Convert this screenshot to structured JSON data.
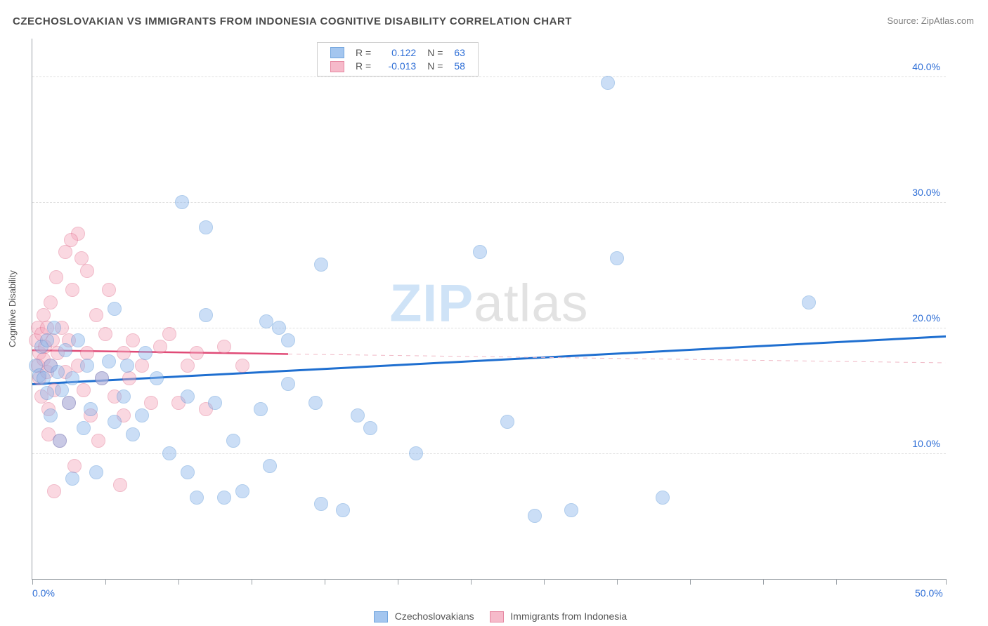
{
  "title": "CZECHOSLOVAKIAN VS IMMIGRANTS FROM INDONESIA COGNITIVE DISABILITY CORRELATION CHART",
  "source": "Source: ZipAtlas.com",
  "watermark": {
    "part1": "ZIP",
    "part2": "atlas"
  },
  "yaxis_title": "Cognitive Disability",
  "chart": {
    "type": "scatter",
    "background_color": "#ffffff",
    "grid_color": "#e0e0e0",
    "axis_color": "#9aa0a6",
    "label_color": "#2e6ed6",
    "xlim": [
      0,
      50
    ],
    "ylim": [
      0,
      43
    ],
    "x_ticks": [
      0,
      4,
      8,
      12,
      16,
      20,
      24,
      28,
      32,
      36,
      40,
      44,
      50
    ],
    "x_tick_labels": {
      "0": "0.0%",
      "50": "50.0%"
    },
    "y_gridlines": [
      10,
      20,
      30,
      40
    ],
    "y_tick_labels": {
      "10": "10.0%",
      "20": "20.0%",
      "30": "30.0%",
      "40": "40.0%"
    },
    "marker_radius": 9,
    "marker_opacity": 0.45,
    "marker_stroke_width": 1.3
  },
  "series": {
    "a": {
      "name": "Czechoslovakians",
      "fill_color": "#8eb8ec",
      "stroke_color": "#4f8fd6",
      "R": "0.122",
      "N": "63",
      "trend": {
        "solid": {
          "y_at_x0": 15.5,
          "y_at_x50": 19.3,
          "x_end": 50
        },
        "solid_color": "#1f6fd0",
        "solid_width": 3
      },
      "points": [
        [
          0.2,
          17.0
        ],
        [
          0.4,
          16.2
        ],
        [
          0.5,
          18.5
        ],
        [
          0.6,
          16.0
        ],
        [
          0.8,
          19.0
        ],
        [
          0.8,
          14.8
        ],
        [
          1.0,
          17.0
        ],
        [
          1.0,
          13.0
        ],
        [
          1.2,
          20.0
        ],
        [
          1.4,
          16.5
        ],
        [
          1.5,
          11.0
        ],
        [
          1.8,
          18.2
        ],
        [
          2.0,
          14.0
        ],
        [
          2.2,
          16.0
        ],
        [
          2.2,
          8.0
        ],
        [
          2.5,
          19.0
        ],
        [
          2.8,
          12.0
        ],
        [
          3.0,
          17.0
        ],
        [
          3.2,
          13.5
        ],
        [
          3.5,
          8.5
        ],
        [
          3.8,
          16.0
        ],
        [
          4.2,
          17.3
        ],
        [
          4.5,
          12.5
        ],
        [
          4.5,
          21.5
        ],
        [
          5.0,
          14.5
        ],
        [
          5.2,
          17.0
        ],
        [
          5.5,
          11.5
        ],
        [
          6.0,
          13.0
        ],
        [
          6.2,
          18.0
        ],
        [
          6.8,
          16.0
        ],
        [
          7.5,
          10.0
        ],
        [
          8.2,
          30.0
        ],
        [
          8.5,
          14.5
        ],
        [
          8.5,
          8.5
        ],
        [
          9.0,
          6.5
        ],
        [
          9.5,
          21.0
        ],
        [
          9.5,
          28.0
        ],
        [
          10.0,
          14.0
        ],
        [
          10.5,
          6.5
        ],
        [
          11.0,
          11.0
        ],
        [
          11.5,
          7.0
        ],
        [
          12.5,
          13.5
        ],
        [
          12.8,
          20.5
        ],
        [
          13.0,
          9.0
        ],
        [
          13.5,
          20.0
        ],
        [
          14.0,
          15.5
        ],
        [
          14.0,
          19.0
        ],
        [
          15.5,
          14.0
        ],
        [
          15.8,
          6.0
        ],
        [
          15.8,
          25.0
        ],
        [
          17.0,
          5.5
        ],
        [
          17.8,
          13.0
        ],
        [
          18.5,
          12.0
        ],
        [
          21.0,
          10.0
        ],
        [
          24.5,
          26.0
        ],
        [
          26.0,
          12.5
        ],
        [
          27.5,
          5.0
        ],
        [
          29.5,
          5.5
        ],
        [
          31.5,
          39.5
        ],
        [
          32.0,
          25.5
        ],
        [
          34.5,
          6.5
        ],
        [
          42.5,
          22.0
        ],
        [
          1.6,
          15.0
        ]
      ]
    },
    "b": {
      "name": "Immigrants from Indonesia",
      "fill_color": "#f5a9be",
      "stroke_color": "#e06a8a",
      "R": "-0.013",
      "N": "58",
      "trend": {
        "solid": {
          "y_at_x0": 18.2,
          "y_at_x_end": 17.9,
          "x_end": 14
        },
        "solid_color": "#e04b77",
        "solid_width": 2.5,
        "dashed": {
          "y_at_x_start": 17.9,
          "x_start": 14,
          "y_at_x50": 17.2
        },
        "dashed_color": "#f0b9c6",
        "dashed_width": 1
      },
      "points": [
        [
          0.2,
          19.0
        ],
        [
          0.3,
          17.0
        ],
        [
          0.3,
          20.0
        ],
        [
          0.4,
          18.0
        ],
        [
          0.4,
          16.0
        ],
        [
          0.5,
          19.5
        ],
        [
          0.5,
          14.5
        ],
        [
          0.6,
          21.0
        ],
        [
          0.6,
          17.5
        ],
        [
          0.7,
          18.5
        ],
        [
          0.8,
          16.5
        ],
        [
          0.8,
          20.0
        ],
        [
          0.9,
          13.5
        ],
        [
          1.0,
          22.0
        ],
        [
          1.0,
          17.0
        ],
        [
          1.1,
          19.0
        ],
        [
          1.2,
          15.0
        ],
        [
          1.3,
          24.0
        ],
        [
          1.4,
          18.0
        ],
        [
          1.5,
          11.0
        ],
        [
          1.6,
          20.0
        ],
        [
          1.8,
          16.5
        ],
        [
          1.8,
          26.0
        ],
        [
          2.0,
          14.0
        ],
        [
          2.0,
          19.0
        ],
        [
          2.2,
          23.0
        ],
        [
          2.3,
          9.0
        ],
        [
          2.5,
          17.0
        ],
        [
          2.5,
          27.5
        ],
        [
          2.7,
          25.5
        ],
        [
          2.8,
          15.0
        ],
        [
          3.0,
          24.5
        ],
        [
          3.0,
          18.0
        ],
        [
          3.2,
          13.0
        ],
        [
          3.5,
          21.0
        ],
        [
          3.8,
          16.0
        ],
        [
          4.0,
          19.5
        ],
        [
          4.2,
          23.0
        ],
        [
          4.5,
          14.5
        ],
        [
          4.8,
          7.5
        ],
        [
          5.0,
          18.0
        ],
        [
          5.0,
          13.0
        ],
        [
          5.3,
          16.0
        ],
        [
          5.5,
          19.0
        ],
        [
          6.0,
          17.0
        ],
        [
          6.5,
          14.0
        ],
        [
          7.0,
          18.5
        ],
        [
          7.5,
          19.5
        ],
        [
          8.0,
          14.0
        ],
        [
          8.5,
          17.0
        ],
        [
          9.0,
          18.0
        ],
        [
          9.5,
          13.5
        ],
        [
          10.5,
          18.5
        ],
        [
          11.5,
          17.0
        ],
        [
          1.2,
          7.0
        ],
        [
          0.9,
          11.5
        ],
        [
          3.6,
          11.0
        ],
        [
          2.1,
          27.0
        ]
      ]
    }
  },
  "legend_labels": {
    "R": "R =",
    "N": "N ="
  }
}
